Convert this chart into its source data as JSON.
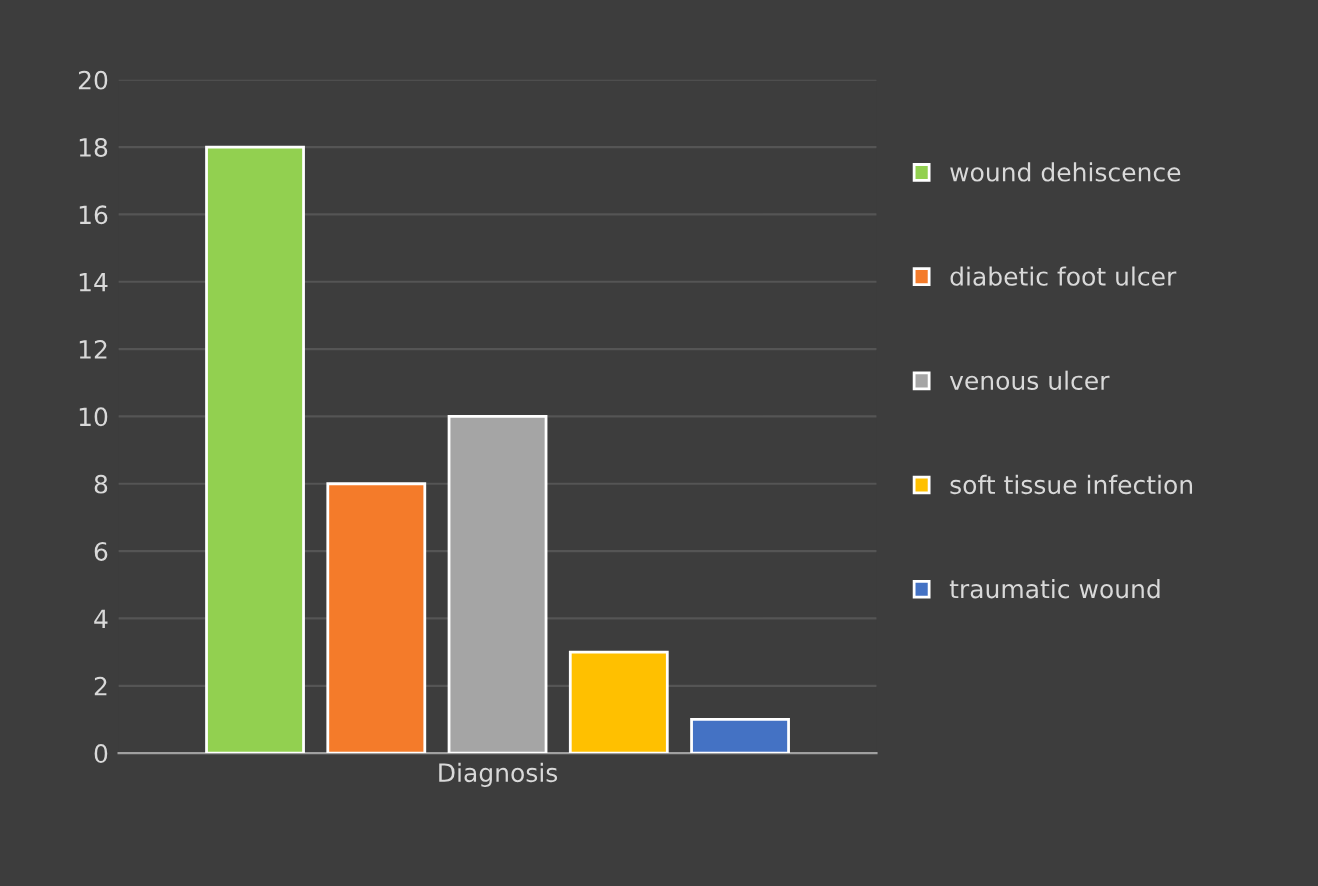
{
  "chart_data": {
    "type": "bar",
    "categories": [
      "Diagnosis"
    ],
    "series": [
      {
        "name": "wound dehiscence",
        "color": "#92d050",
        "values": [
          18
        ]
      },
      {
        "name": "diabetic foot ulcer",
        "color": "#f47b2a",
        "values": [
          8
        ]
      },
      {
        "name": "venous ulcer",
        "color": "#a5a5a5",
        "values": [
          10
        ]
      },
      {
        "name": "soft tissue infection",
        "color": "#ffc000",
        "values": [
          3
        ]
      },
      {
        "name": "traumatic wound",
        "color": "#4472c4",
        "values": [
          1
        ]
      }
    ],
    "ylim": [
      0,
      20
    ],
    "yticks": [
      0,
      2,
      4,
      6,
      8,
      10,
      12,
      14,
      16,
      18,
      20
    ],
    "grid": "y",
    "legend": "right"
  }
}
